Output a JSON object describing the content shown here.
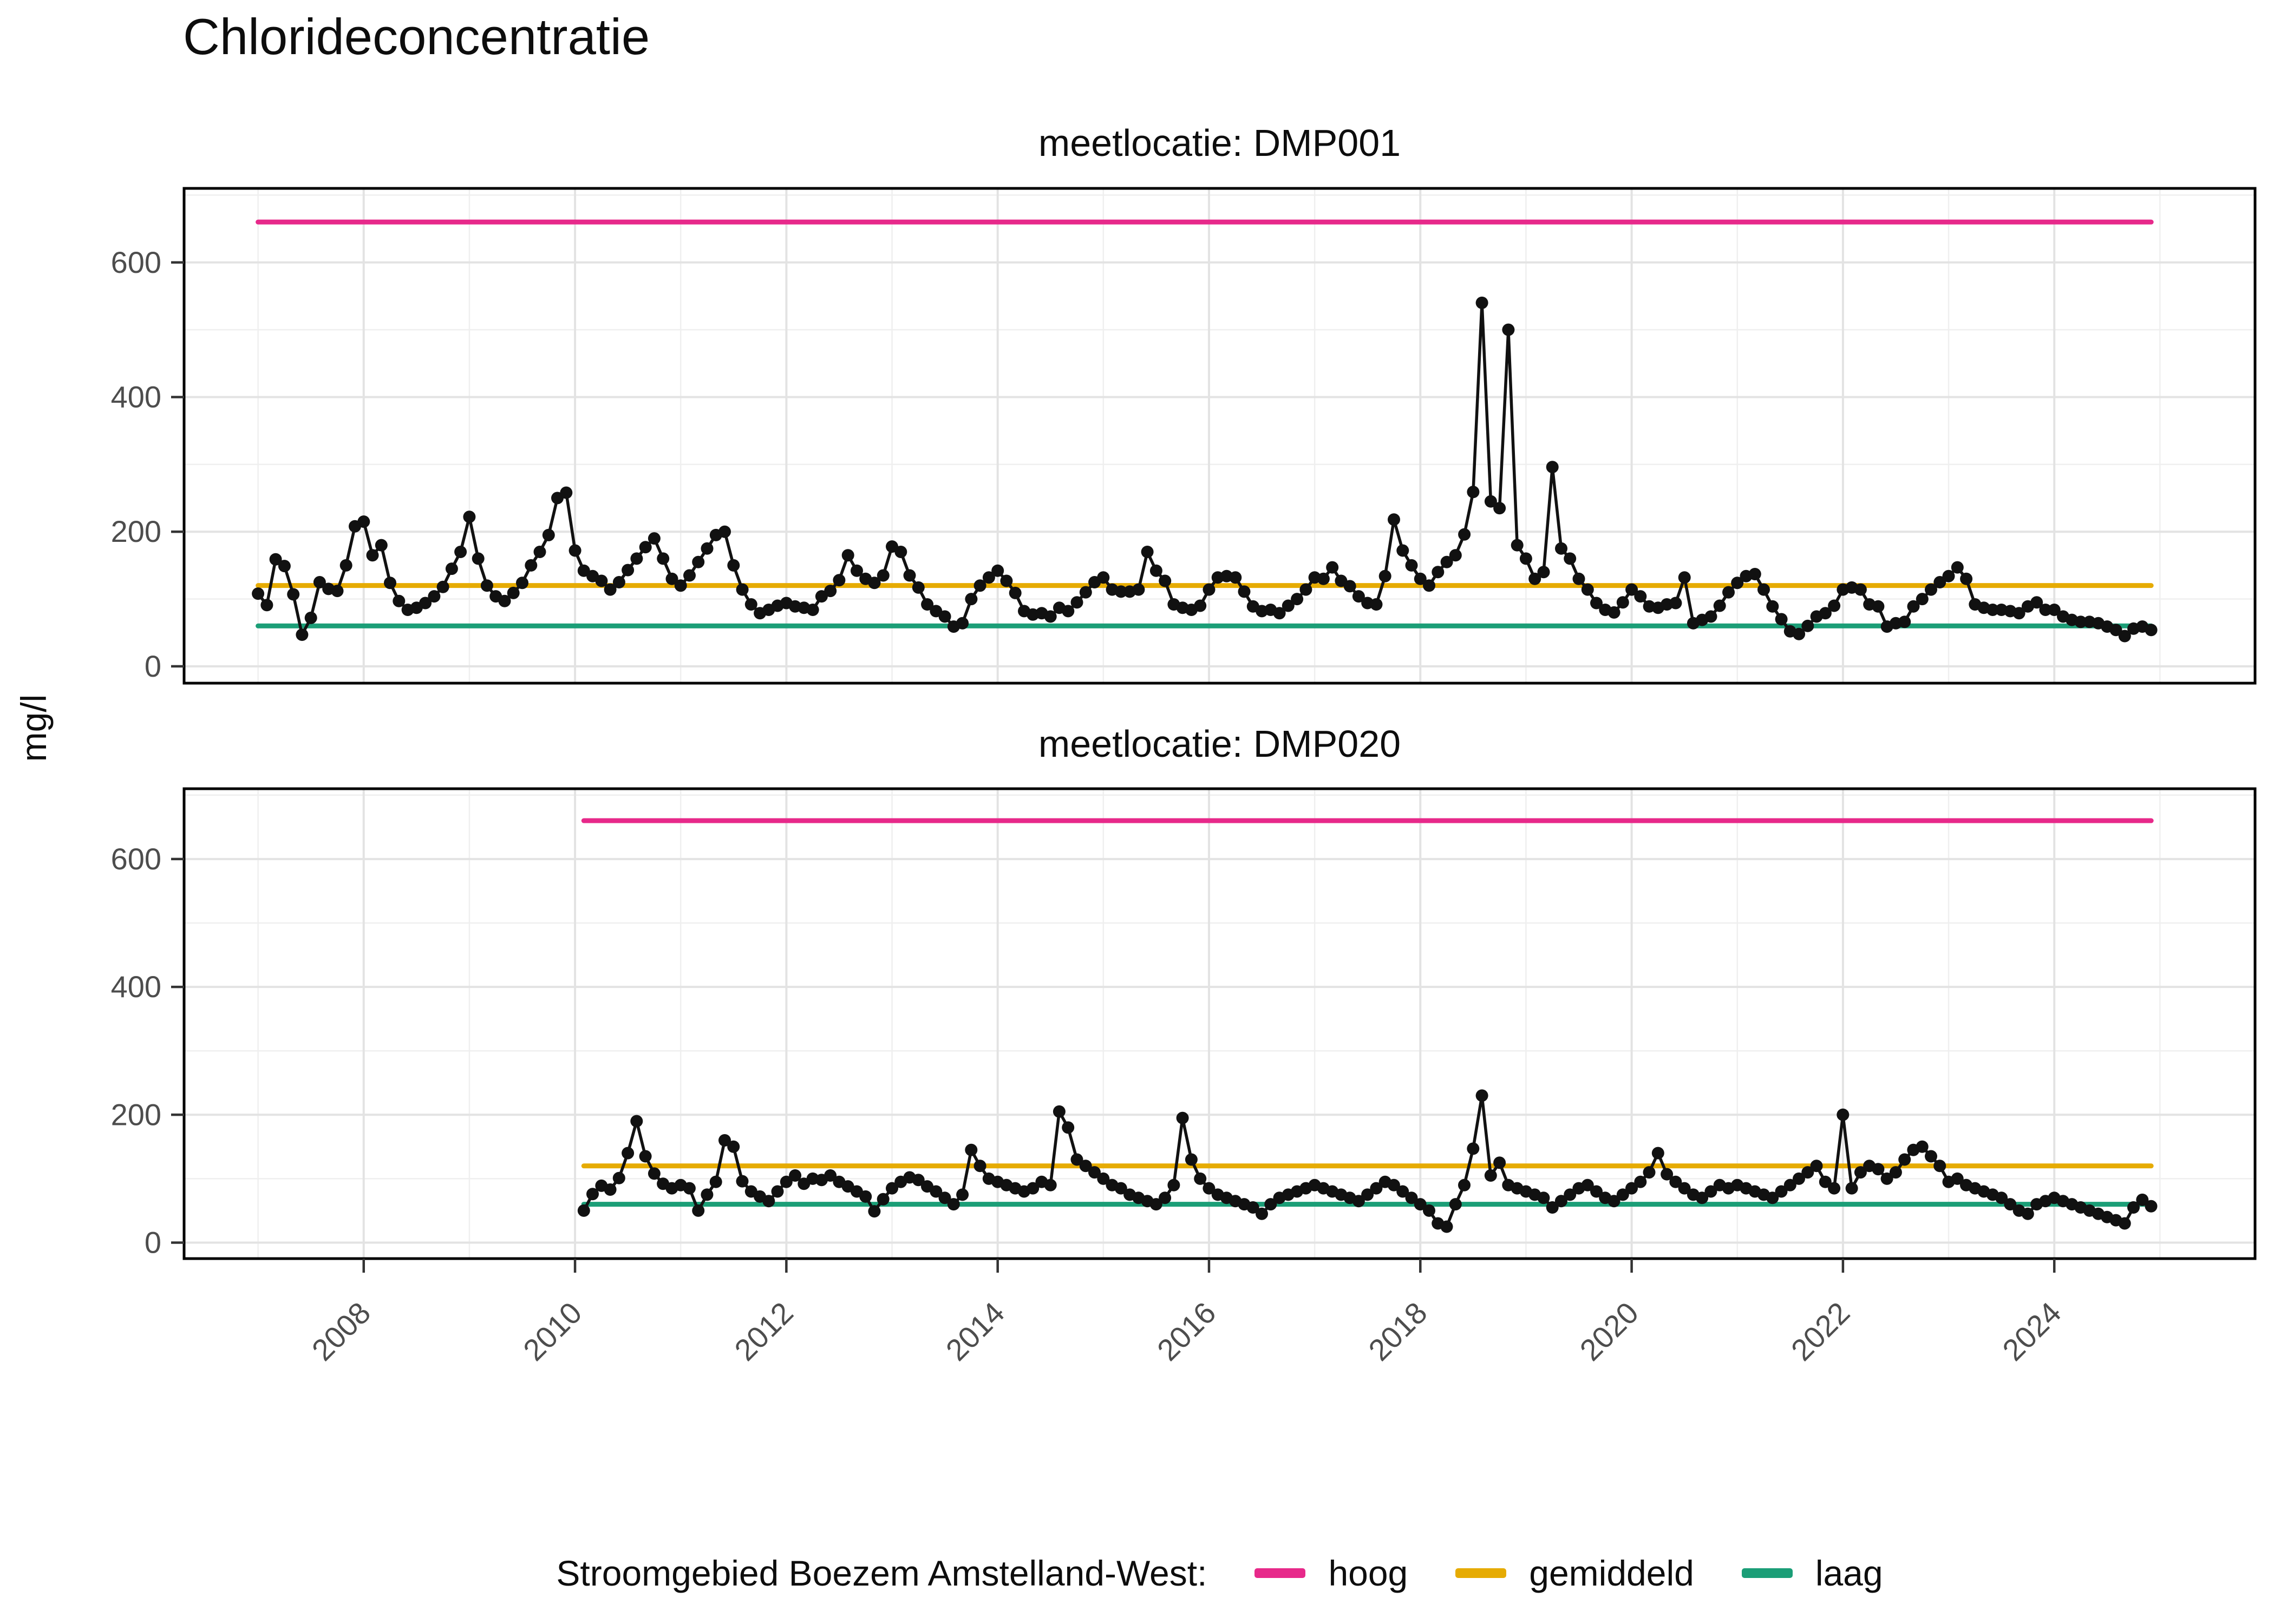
{
  "page": {
    "title": "Chlorideconcentratie",
    "y_axis_title": "mg/l"
  },
  "legend": {
    "title": "Stroomgebied Boezem Amstelland-West:",
    "items": [
      {
        "label": "hoog",
        "color": "#E7298A",
        "value": 660
      },
      {
        "label": "gemiddeld",
        "color": "#E6AB02",
        "value": 120
      },
      {
        "label": "laag",
        "color": "#1B9E77",
        "value": 60
      }
    ]
  },
  "chart_data": [
    {
      "type": "line",
      "facet_title": "meetlocatie: DMP001",
      "ylabel": "mg/l",
      "series_name": "chlorideconcentratie DMP001",
      "series_color": "#111111",
      "xlim": [
        2006.3,
        2025.9
      ],
      "ylim": [
        -25,
        710
      ],
      "x_ticks": [
        2008,
        2010,
        2012,
        2014,
        2016,
        2018,
        2020,
        2022,
        2024
      ],
      "y_ticks": [
        0,
        200,
        400,
        600
      ],
      "y_minor": [
        100,
        300,
        500,
        700
      ],
      "grid": true,
      "x_start": 2007.0,
      "x_step_years": 0.083333,
      "values": [
        108,
        91,
        159,
        149,
        107,
        47,
        72,
        125,
        115,
        112,
        150,
        208,
        215,
        165,
        180,
        124,
        97,
        84,
        87,
        94,
        104,
        118,
        145,
        170,
        222,
        160,
        120,
        104,
        97,
        109,
        124,
        150,
        170,
        195,
        250,
        258,
        172,
        142,
        134,
        127,
        114,
        125,
        143,
        160,
        177,
        190,
        160,
        130,
        120,
        135,
        155,
        175,
        195,
        200,
        150,
        114,
        92,
        79,
        84,
        90,
        94,
        89,
        87,
        84,
        104,
        112,
        128,
        165,
        142,
        130,
        124,
        135,
        178,
        170,
        135,
        117,
        92,
        82,
        74,
        59,
        64,
        100,
        120,
        132,
        142,
        127,
        109,
        82,
        77,
        79,
        74,
        87,
        82,
        95,
        110,
        125,
        132,
        114,
        111,
        111,
        114,
        170,
        142,
        127,
        92,
        87,
        84,
        90,
        114,
        132,
        134,
        132,
        111,
        89,
        82,
        84,
        79,
        90,
        100,
        114,
        132,
        130,
        147,
        127,
        119,
        104,
        94,
        92,
        134,
        218,
        172,
        150,
        130,
        120,
        140,
        155,
        165,
        196,
        259,
        540,
        245,
        235,
        500,
        180,
        160,
        130,
        140,
        296,
        175,
        160,
        130,
        114,
        94,
        84,
        80,
        95,
        114,
        104,
        89,
        87,
        92,
        94,
        132,
        64,
        69,
        74,
        90,
        110,
        124,
        134,
        137,
        114,
        89,
        70,
        52,
        48,
        60,
        74,
        79,
        90,
        114,
        117,
        114,
        92,
        89,
        59,
        64,
        66,
        89,
        100,
        114,
        125,
        134,
        147,
        130,
        92,
        87,
        84,
        84,
        82,
        79,
        89,
        95,
        84,
        84,
        74,
        69,
        66,
        66,
        64,
        59,
        54,
        45,
        56,
        59,
        54
      ],
      "reference_lines": [
        {
          "label": "hoog",
          "value": 660,
          "color": "#E7298A",
          "x_span": [
            2007.0,
            2024.917
          ]
        },
        {
          "label": "gemiddeld",
          "value": 120,
          "color": "#E6AB02",
          "x_span": [
            2007.0,
            2024.917
          ]
        },
        {
          "label": "laag",
          "value": 60,
          "color": "#1B9E77",
          "x_span": [
            2007.0,
            2024.917
          ]
        }
      ]
    },
    {
      "type": "line",
      "facet_title": "meetlocatie: DMP020",
      "ylabel": "mg/l",
      "series_name": "chlorideconcentratie DMP020",
      "series_color": "#111111",
      "xlim": [
        2006.3,
        2025.9
      ],
      "ylim": [
        -25,
        710
      ],
      "x_ticks": [
        2008,
        2010,
        2012,
        2014,
        2016,
        2018,
        2020,
        2022,
        2024
      ],
      "y_ticks": [
        0,
        200,
        400,
        600
      ],
      "y_minor": [
        100,
        300,
        500,
        700
      ],
      "grid": true,
      "x_start": 2010.083,
      "x_step_years": 0.083333,
      "values": [
        50,
        76,
        89,
        83,
        101,
        140,
        190,
        135,
        108,
        92,
        85,
        90,
        85,
        50,
        75,
        95,
        160,
        150,
        96,
        80,
        72,
        65,
        80,
        95,
        105,
        92,
        100,
        98,
        105,
        95,
        88,
        80,
        72,
        49,
        68,
        85,
        95,
        102,
        98,
        88,
        80,
        70,
        60,
        75,
        145,
        120,
        100,
        95,
        90,
        85,
        80,
        85,
        95,
        90,
        205,
        180,
        130,
        120,
        110,
        100,
        90,
        85,
        75,
        70,
        65,
        60,
        70,
        90,
        195,
        130,
        100,
        85,
        75,
        70,
        65,
        60,
        55,
        45,
        60,
        70,
        75,
        80,
        85,
        90,
        85,
        80,
        75,
        70,
        65,
        75,
        85,
        95,
        90,
        80,
        70,
        60,
        50,
        30,
        25,
        60,
        90,
        147,
        230,
        105,
        125,
        90,
        85,
        80,
        75,
        70,
        55,
        65,
        75,
        85,
        90,
        80,
        70,
        65,
        75,
        85,
        95,
        110,
        140,
        107,
        95,
        85,
        75,
        70,
        80,
        90,
        85,
        90,
        85,
        80,
        75,
        70,
        80,
        90,
        100,
        110,
        120,
        95,
        85,
        200,
        85,
        110,
        120,
        115,
        100,
        110,
        130,
        145,
        150,
        135,
        120,
        95,
        100,
        90,
        85,
        80,
        75,
        70,
        60,
        50,
        45,
        60,
        65,
        70,
        65,
        60,
        55,
        50,
        45,
        40,
        35,
        30,
        55,
        67,
        57
      ],
      "reference_lines": [
        {
          "label": "hoog",
          "value": 660,
          "color": "#E7298A",
          "x_span": [
            2010.083,
            2024.917
          ]
        },
        {
          "label": "gemiddeld",
          "value": 120,
          "color": "#E6AB02",
          "x_span": [
            2010.083,
            2024.917
          ]
        },
        {
          "label": "laag",
          "value": 60,
          "color": "#1B9E77",
          "x_span": [
            2010.083,
            2024.917
          ]
        }
      ]
    }
  ],
  "colors": {
    "grid_major": "#E3E3E3",
    "grid_minor": "#EFEFEF",
    "panel_border": "#000000",
    "tick": "#333333",
    "tick_label": "#4D4D4D",
    "points": "#111111"
  }
}
